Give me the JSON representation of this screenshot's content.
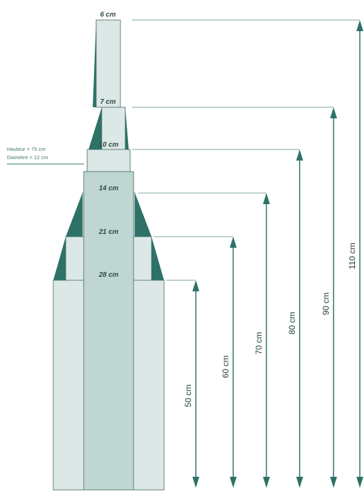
{
  "colors": {
    "light_fill": "#dce8e6",
    "mid_fill": "#bfd6d2",
    "dark_accent": "#2e7267",
    "stroke": "#5e7f7b",
    "arrow": "#2e7267",
    "guide": "#7fa39d"
  },
  "widths": {
    "w6": "6 cm",
    "w7": "7 cm",
    "w10": "10 cm",
    "w14": "14 cm",
    "w21": "21 cm",
    "w28": "28 cm"
  },
  "heights": {
    "h50": "50 cm",
    "h60": "60 cm",
    "h70": "70 cm",
    "h80": "80 cm",
    "h90": "90 cm",
    "h110": "110 cm"
  },
  "note": {
    "line1": "Hauteur = 75 cm",
    "line2": "Diamètre = 12 cm"
  }
}
